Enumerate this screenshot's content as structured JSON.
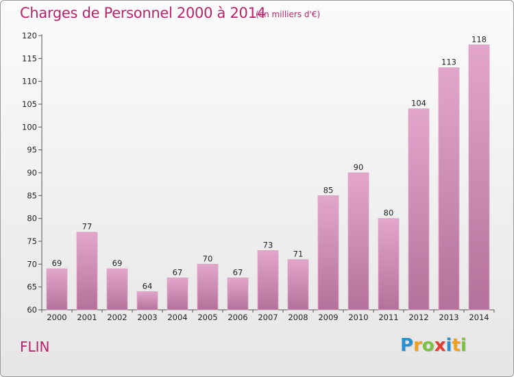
{
  "header": {
    "title": "Charges de Personnel 2000 à 2014",
    "subtitle": "(en milliers d'€)"
  },
  "footer": {
    "commune": "FLIN",
    "logo_letters": [
      {
        "char": "P",
        "color": "#2a8fd0"
      },
      {
        "char": "r",
        "color": "#f0a020"
      },
      {
        "char": "o",
        "color": "#7cc242"
      },
      {
        "char": "x",
        "color": "#e23a2e"
      },
      {
        "char": "i",
        "color": "#2a8fd0"
      },
      {
        "char": "t",
        "color": "#f0a020"
      },
      {
        "char": "i",
        "color": "#7cc242"
      }
    ]
  },
  "colors": {
    "accent": "#b8246b",
    "bar_top": "#e3a6cb",
    "bar_bottom": "#b4719b"
  },
  "chart_data": {
    "type": "bar",
    "title": "Charges de Personnel 2000 à 2014",
    "subtitle": "(en milliers d'€)",
    "categories": [
      "2000",
      "2001",
      "2002",
      "2003",
      "2004",
      "2005",
      "2006",
      "2007",
      "2008",
      "2009",
      "2010",
      "2011",
      "2012",
      "2013",
      "2014"
    ],
    "values": [
      69,
      77,
      69,
      64,
      67,
      70,
      67,
      73,
      71,
      85,
      90,
      80,
      104,
      113,
      118
    ],
    "ylim": [
      60,
      120
    ],
    "yticks": [
      60,
      65,
      70,
      75,
      80,
      85,
      90,
      95,
      100,
      105,
      110,
      115,
      120
    ],
    "grid": false,
    "data_labels": true
  }
}
